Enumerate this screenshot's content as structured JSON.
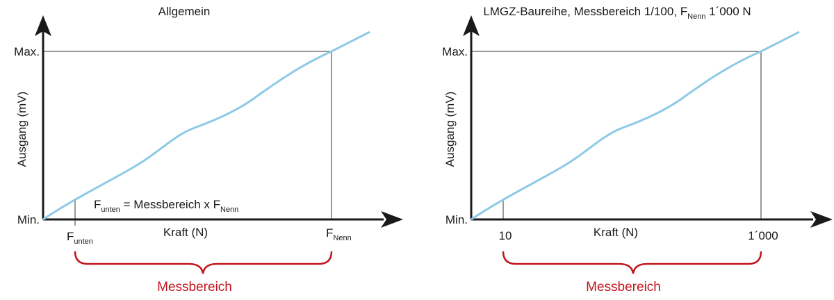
{
  "diagrams": [
    {
      "title": "Allgemein",
      "y_axis_label": "Ausgang (mV)",
      "x_axis_label": "Kraft (N)",
      "y_max_label": "Max.",
      "y_min_label": "Min.",
      "x_low_label": "F",
      "x_low_sub": "unten",
      "x_high_label": "F",
      "x_high_sub": "Nenn",
      "formula": {
        "f": "F",
        "f_sub": "unten",
        "eq": " = Messbereich x F",
        "nenn_sub": "Nenn"
      },
      "range_label": "Messbereich"
    },
    {
      "title_main": "LMGZ-Baureihe, Messbereich 1/100, F",
      "title_sub": "Nenn",
      "title_end": " 1´000 N",
      "y_axis_label": "Ausgang (mV)",
      "x_axis_label": "Kraft (N)",
      "y_max_label": "Max.",
      "y_min_label": "Min.",
      "x_low_label": "10",
      "x_high_label": "1´000",
      "range_label": "Messbereich"
    }
  ],
  "colors": {
    "curve": "#8ecae6",
    "axis": "#1a1a1a",
    "range": "#c0141c",
    "guide": "#333333"
  }
}
